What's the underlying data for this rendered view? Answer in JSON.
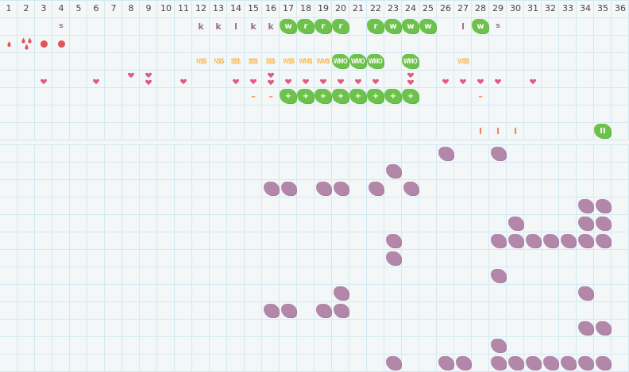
{
  "columns": [
    "1",
    "2",
    "3",
    "4",
    "5",
    "6",
    "7",
    "8",
    "9",
    "10",
    "11",
    "12",
    "13",
    "14",
    "15",
    "16",
    "17",
    "18",
    "19",
    "20",
    "21",
    "22",
    "23",
    "24",
    "25",
    "26",
    "27",
    "28",
    "29",
    "30",
    "31",
    "32",
    "33",
    "34",
    "35",
    "36"
  ],
  "colors": {
    "green": "#6cc24a",
    "purple": "#b287a9",
    "heart": "#e05a82",
    "drop": "#e05555",
    "orange": "#f6a623",
    "grid": "#d4e9f2"
  },
  "top_rows": [
    {
      "cells": [
        {
          "col": 4,
          "text": "s",
          "style": "purple-small"
        },
        {
          "col": 12,
          "text": "k",
          "style": "purple"
        },
        {
          "col": 13,
          "text": "k",
          "style": "purple"
        },
        {
          "col": 14,
          "text": "l",
          "style": "purple"
        },
        {
          "col": 15,
          "text": "k",
          "style": "purple"
        },
        {
          "col": 16,
          "text": "k",
          "style": "purple"
        },
        {
          "col": 17,
          "text": "w",
          "style": "green-blob"
        },
        {
          "col": 18,
          "text": "r",
          "style": "green-blob"
        },
        {
          "col": 19,
          "text": "r",
          "style": "green-blob"
        },
        {
          "col": 20,
          "text": "r",
          "style": "green-blob"
        },
        {
          "col": 22,
          "text": "r",
          "style": "green-blob"
        },
        {
          "col": 23,
          "text": "w",
          "style": "green-blob"
        },
        {
          "col": 24,
          "text": "w",
          "style": "green-blob"
        },
        {
          "col": 25,
          "text": "w",
          "style": "green-blob"
        },
        {
          "col": 27,
          "text": "l",
          "style": "purple"
        },
        {
          "col": 28,
          "text": "w",
          "style": "green-blob"
        },
        {
          "col": 29,
          "text": "s",
          "style": "purple-small"
        }
      ]
    },
    {
      "cells": [
        {
          "col": 1,
          "icon": "drop-icon",
          "count": 1
        },
        {
          "col": 2,
          "icon": "drop-icon",
          "count": 3
        },
        {
          "col": 3,
          "icon": "dot-icon",
          "count": 1
        },
        {
          "col": 4,
          "icon": "dot-icon",
          "count": 1
        }
      ]
    },
    {
      "cells": [
        {
          "col": 12,
          "text": "N$$",
          "style": "orange"
        },
        {
          "col": 13,
          "text": "N$$",
          "style": "orange"
        },
        {
          "col": 14,
          "text": "$$$",
          "style": "orange"
        },
        {
          "col": 15,
          "text": "$$$",
          "style": "orange"
        },
        {
          "col": 16,
          "text": "$$$",
          "style": "orange"
        },
        {
          "col": 17,
          "text": "W$$",
          "style": "orange"
        },
        {
          "col": 18,
          "text": "WM$",
          "style": "orange"
        },
        {
          "col": 19,
          "text": "WM$",
          "style": "orange"
        },
        {
          "col": 20,
          "text": "WMO",
          "style": "green-blob"
        },
        {
          "col": 21,
          "text": "WMO",
          "style": "green-blob"
        },
        {
          "col": 22,
          "text": "WMO",
          "style": "green-blob"
        },
        {
          "col": 24,
          "text": "WMO",
          "style": "green-blob"
        },
        {
          "col": 27,
          "text": "W$$",
          "style": "orange"
        }
      ]
    },
    {
      "cells": [
        {
          "col": 3,
          "icon": "heart-icon",
          "count": 1
        },
        {
          "col": 6,
          "icon": "heart-icon",
          "count": 1
        },
        {
          "col": 8,
          "icon": "heart-icon",
          "count": 1,
          "raised": true
        },
        {
          "col": 9,
          "icon": "heart-icon",
          "count": 2
        },
        {
          "col": 11,
          "icon": "heart-icon",
          "count": 1
        },
        {
          "col": 14,
          "icon": "heart-icon",
          "count": 1
        },
        {
          "col": 15,
          "icon": "heart-icon",
          "count": 1
        },
        {
          "col": 16,
          "icon": "heart-icon",
          "count": 2
        },
        {
          "col": 17,
          "icon": "heart-icon",
          "count": 1
        },
        {
          "col": 18,
          "icon": "heart-icon",
          "count": 1
        },
        {
          "col": 19,
          "icon": "heart-icon",
          "count": 1
        },
        {
          "col": 20,
          "icon": "heart-icon",
          "count": 1
        },
        {
          "col": 21,
          "icon": "heart-icon",
          "count": 1
        },
        {
          "col": 22,
          "icon": "heart-icon",
          "count": 1
        },
        {
          "col": 24,
          "icon": "heart-icon",
          "count": 2
        },
        {
          "col": 26,
          "icon": "heart-icon",
          "count": 1
        },
        {
          "col": 27,
          "icon": "heart-icon",
          "count": 1
        },
        {
          "col": 28,
          "icon": "heart-icon",
          "count": 1
        },
        {
          "col": 29,
          "icon": "heart-icon",
          "count": 1
        },
        {
          "col": 31,
          "icon": "heart-icon",
          "count": 1
        }
      ]
    },
    {
      "cells": [
        {
          "col": 15,
          "text": "–",
          "style": "dash"
        },
        {
          "col": 16,
          "text": "–",
          "style": "dash"
        },
        {
          "col": 17,
          "text": "+",
          "style": "green-blob"
        },
        {
          "col": 18,
          "text": "+",
          "style": "green-blob"
        },
        {
          "col": 19,
          "text": "+",
          "style": "green-blob"
        },
        {
          "col": 20,
          "text": "+",
          "style": "green-blob"
        },
        {
          "col": 21,
          "text": "+",
          "style": "green-blob"
        },
        {
          "col": 22,
          "text": "+",
          "style": "green-blob"
        },
        {
          "col": 23,
          "text": "+",
          "style": "green-blob"
        },
        {
          "col": 24,
          "text": "+",
          "style": "green-blob"
        },
        {
          "col": 28,
          "text": "–",
          "style": "dash"
        }
      ]
    },
    {
      "cells": []
    },
    {
      "cells": [
        {
          "col": 28,
          "text": "I",
          "style": "dash"
        },
        {
          "col": 29,
          "text": "I",
          "style": "dash"
        },
        {
          "col": 30,
          "text": "I",
          "style": "dash"
        },
        {
          "col": 35,
          "text": "II",
          "style": "green-blob"
        }
      ]
    }
  ],
  "bottom_rows": [
    [
      26,
      29
    ],
    [
      23
    ],
    [
      16,
      17,
      19,
      20,
      22,
      24
    ],
    [
      34,
      35
    ],
    [
      30,
      34,
      35
    ],
    [
      23,
      29,
      30,
      31,
      32,
      33,
      34,
      35
    ],
    [
      23
    ],
    [
      29
    ],
    [
      20,
      34
    ],
    [
      16,
      17,
      19,
      20
    ],
    [
      34,
      35
    ],
    [
      29
    ],
    [
      23,
      26,
      27,
      29,
      30,
      31,
      32,
      33,
      34,
      35
    ]
  ]
}
